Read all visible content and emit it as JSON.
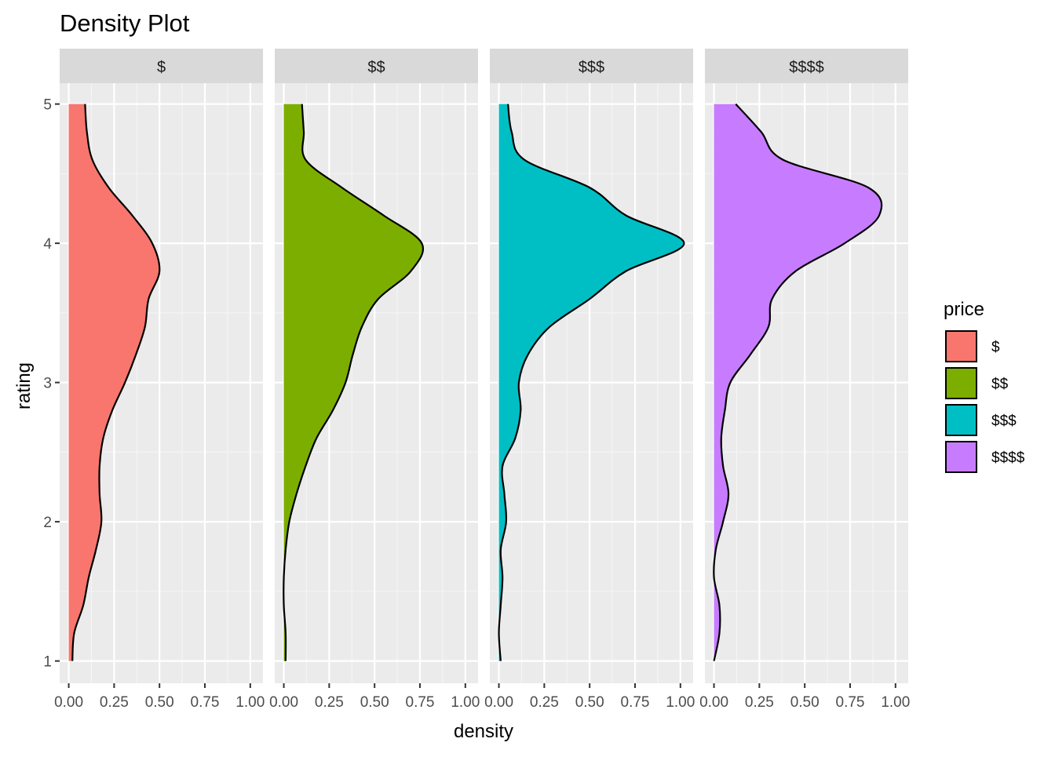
{
  "chart_data": {
    "type": "area",
    "title": "Density Plot",
    "xlabel": "density",
    "ylabel": "rating",
    "facets": [
      "$",
      "$$",
      "$$$",
      "$$$$"
    ],
    "xlim": [
      -0.05,
      1.07
    ],
    "ylim": [
      0.84,
      5.15
    ],
    "x_ticks": [
      0,
      0.25,
      0.5,
      0.75,
      1
    ],
    "x_tick_labels": [
      "0.00",
      "0.25",
      "0.50",
      "0.75",
      "1.00"
    ],
    "y_ticks": [
      1,
      2,
      3,
      4,
      5
    ],
    "y_tick_labels": [
      "1",
      "2",
      "3",
      "4",
      "5"
    ],
    "grid": true,
    "legend": {
      "title": "price",
      "placement": "right",
      "entries": [
        {
          "label": "$",
          "color": "#F8766D"
        },
        {
          "label": "$$",
          "color": "#7CAE00"
        },
        {
          "label": "$$$",
          "color": "#00BFC4"
        },
        {
          "label": "$$$$",
          "color": "#C77CFF"
        }
      ]
    },
    "series": [
      {
        "name": "$",
        "color": "#F8766D",
        "y": [
          1.0,
          1.2,
          1.4,
          1.6,
          1.8,
          2.0,
          2.2,
          2.4,
          2.6,
          2.8,
          3.0,
          3.2,
          3.4,
          3.6,
          3.8,
          4.0,
          4.2,
          4.4,
          4.6,
          4.8,
          5.0
        ],
        "density": [
          0.02,
          0.03,
          0.08,
          0.11,
          0.15,
          0.18,
          0.17,
          0.17,
          0.19,
          0.24,
          0.31,
          0.37,
          0.42,
          0.44,
          0.5,
          0.46,
          0.35,
          0.22,
          0.13,
          0.1,
          0.09
        ]
      },
      {
        "name": "$$",
        "color": "#7CAE00",
        "y": [
          1.0,
          1.2,
          1.4,
          1.6,
          1.8,
          2.0,
          2.2,
          2.4,
          2.6,
          2.8,
          3.0,
          3.2,
          3.4,
          3.6,
          3.8,
          4.0,
          4.2,
          4.4,
          4.6,
          4.8,
          5.0
        ],
        "density": [
          0.01,
          0.01,
          0.0,
          0.0,
          0.01,
          0.03,
          0.07,
          0.12,
          0.18,
          0.27,
          0.34,
          0.38,
          0.43,
          0.52,
          0.7,
          0.76,
          0.55,
          0.32,
          0.12,
          0.11,
          0.1
        ]
      },
      {
        "name": "$$$",
        "color": "#00BFC4",
        "y": [
          1.0,
          1.2,
          1.4,
          1.6,
          1.8,
          2.0,
          2.2,
          2.4,
          2.6,
          2.8,
          3.0,
          3.2,
          3.4,
          3.6,
          3.8,
          4.0,
          4.2,
          4.4,
          4.6,
          4.8,
          5.0
        ],
        "density": [
          0.01,
          0.0,
          0.01,
          0.02,
          0.01,
          0.04,
          0.03,
          0.02,
          0.09,
          0.12,
          0.11,
          0.16,
          0.28,
          0.5,
          0.7,
          1.02,
          0.7,
          0.5,
          0.14,
          0.07,
          0.05
        ]
      },
      {
        "name": "$$$$",
        "color": "#C77CFF",
        "y": [
          1.0,
          1.2,
          1.4,
          1.6,
          1.8,
          2.0,
          2.2,
          2.4,
          2.6,
          2.8,
          3.0,
          3.2,
          3.4,
          3.6,
          3.8,
          4.0,
          4.2,
          4.4,
          4.6,
          4.8,
          5.0
        ],
        "density": [
          0.0,
          0.03,
          0.03,
          0.0,
          0.01,
          0.05,
          0.08,
          0.05,
          0.04,
          0.06,
          0.09,
          0.2,
          0.3,
          0.32,
          0.45,
          0.72,
          0.91,
          0.85,
          0.38,
          0.26,
          0.12
        ]
      }
    ]
  }
}
